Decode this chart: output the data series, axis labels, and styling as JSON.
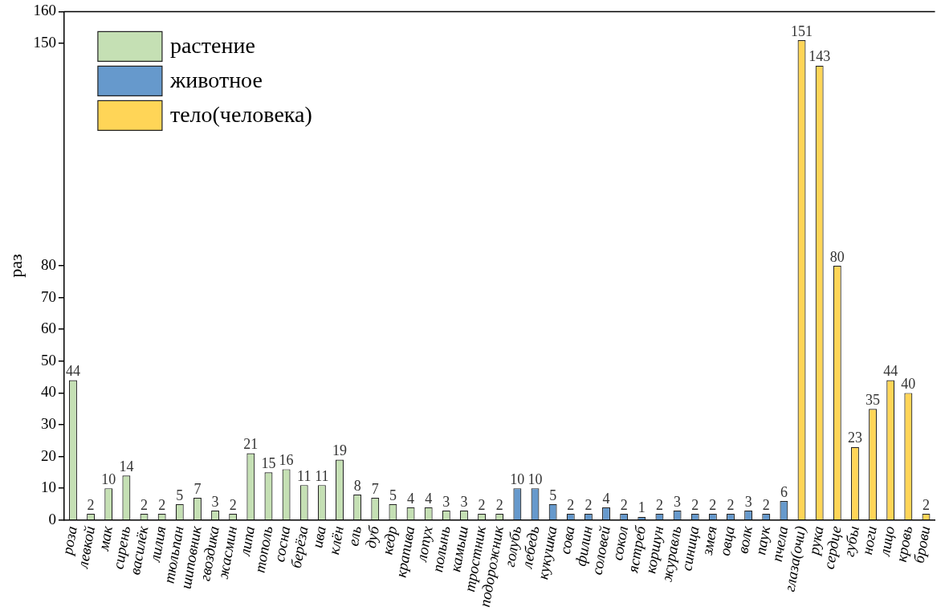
{
  "chart_data": {
    "type": "bar",
    "ylabel": "раз",
    "categories": [
      "роза",
      "левкой",
      "мак",
      "сирень",
      "василёк",
      "лилия",
      "тюльпан",
      "шиповник",
      "гвоздика",
      "жасмин",
      "липа",
      "тополь",
      "сосна",
      "берёза",
      "ива",
      "клён",
      "ель",
      "дуб",
      "кедр",
      "крапива",
      "лопух",
      "полынь",
      "камыш",
      "тростник",
      "подорожник",
      "голубь",
      "лебедь",
      "кукушка",
      "сова",
      "филин",
      "соловей",
      "сокол",
      "ястреб",
      "коршун",
      "журавль",
      "синица",
      "змея",
      "овца",
      "волк",
      "паук",
      "пчела",
      "глаза(очи)",
      "рука",
      "сердце",
      "губы",
      "ноги",
      "лицо",
      "кровь",
      "брови"
    ],
    "series": [
      {
        "name": "растение",
        "color": "#c5e0b4",
        "values": [
          44,
          2,
          10,
          14,
          2,
          2,
          5,
          7,
          3,
          2,
          21,
          15,
          16,
          11,
          11,
          19,
          8,
          7,
          5,
          4,
          4,
          3,
          3,
          2,
          2,
          null,
          null,
          null,
          null,
          null,
          null,
          null,
          null,
          null,
          null,
          null,
          null,
          null,
          null,
          null,
          null,
          null,
          null,
          null,
          null,
          null,
          null,
          null,
          null
        ]
      },
      {
        "name": "животное",
        "color": "#6699cc",
        "values": [
          null,
          null,
          null,
          null,
          null,
          null,
          null,
          null,
          null,
          null,
          null,
          null,
          null,
          null,
          null,
          null,
          null,
          null,
          null,
          null,
          null,
          null,
          null,
          null,
          null,
          10,
          10,
          5,
          2,
          2,
          4,
          2,
          1,
          2,
          3,
          2,
          2,
          2,
          3,
          2,
          6,
          null,
          null,
          null,
          null,
          null,
          null,
          null,
          null
        ]
      },
      {
        "name": "тело(человека)",
        "color": "#ffd557",
        "values": [
          null,
          null,
          null,
          null,
          null,
          null,
          null,
          null,
          null,
          null,
          null,
          null,
          null,
          null,
          null,
          null,
          null,
          null,
          null,
          null,
          null,
          null,
          null,
          null,
          null,
          null,
          null,
          null,
          null,
          null,
          null,
          null,
          null,
          null,
          null,
          null,
          null,
          null,
          null,
          null,
          null,
          151,
          143,
          80,
          23,
          35,
          44,
          40,
          2
        ]
      }
    ],
    "ylim": [
      0,
      160
    ],
    "yticks": [
      0,
      10,
      20,
      30,
      40,
      50,
      60,
      70,
      80,
      150,
      160
    ],
    "data_labels": true,
    "legend": "top left",
    "grid": false
  }
}
